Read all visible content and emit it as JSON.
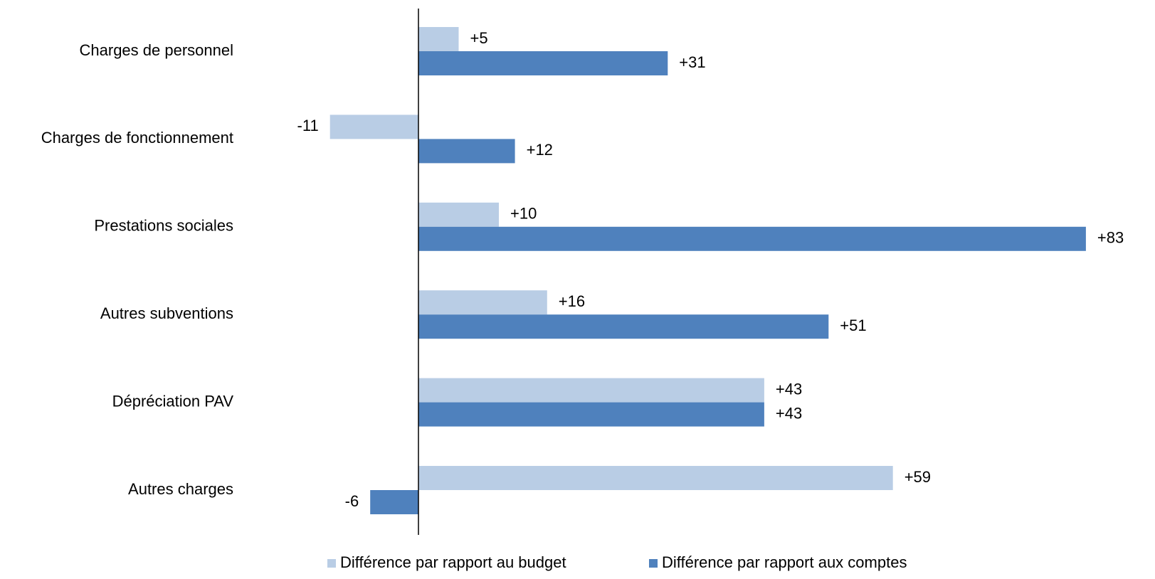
{
  "chart_data": {
    "type": "bar",
    "orientation": "horizontal",
    "categories": [
      "Charges de personnel",
      "Charges de fonctionnement",
      "Prestations sociales",
      "Autres subventions",
      "Dépréciation PAV",
      "Autres charges"
    ],
    "series": [
      {
        "name": "Différence par rapport au budget",
        "values": [
          5,
          -11,
          10,
          16,
          43,
          59
        ],
        "labels": [
          "+5",
          "-11",
          "+10",
          "+16",
          "+43",
          "+59"
        ],
        "color": "#B9CDE5"
      },
      {
        "name": "Différence par rapport aux comptes",
        "values": [
          31,
          12,
          83,
          51,
          43,
          -6
        ],
        "labels": [
          "+31",
          "+12",
          "+83",
          "+51",
          "+43",
          "-6"
        ],
        "color": "#4F81BD"
      }
    ],
    "xlim": [
      -11,
      83
    ],
    "grid": false,
    "legend_position": "bottom",
    "axis_color": "#000000"
  }
}
